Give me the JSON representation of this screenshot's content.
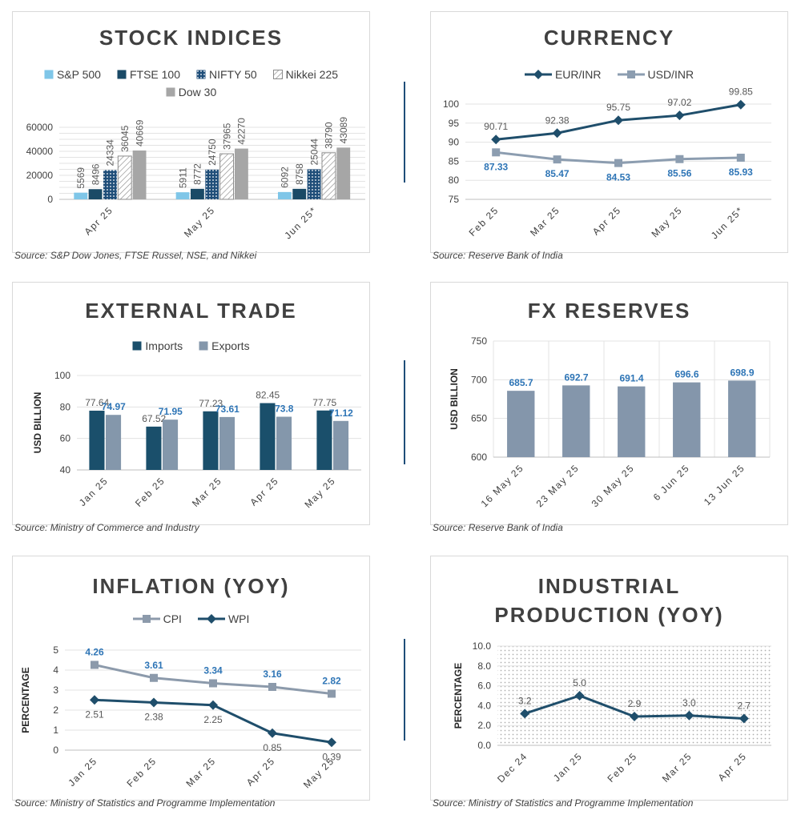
{
  "chart_data": [
    {
      "type": "bar",
      "title": "STOCK INDICES",
      "source": "Source: S&P Dow Jones, FTSE Russel, NSE, and Nikkei",
      "categories": [
        "Apr 25",
        "May 25",
        "Jun 25*"
      ],
      "ylim": [
        0,
        60000
      ],
      "yticks": [
        0,
        20000,
        40000,
        60000
      ],
      "grid_step": 5000,
      "ylabel": "",
      "legend": "top",
      "label_rotate": true,
      "series": [
        {
          "name": "S&P 500",
          "values": [
            5569,
            5911,
            6092
          ],
          "color": "#7fc6e8",
          "pattern": "solid",
          "label_color": "#595959"
        },
        {
          "name": "FTSE 100",
          "values": [
            8496,
            8772,
            8758
          ],
          "color": "#1a4a66",
          "pattern": "solid",
          "label_color": "#595959"
        },
        {
          "name": "NIFTY 50",
          "values": [
            24334,
            24750,
            25044
          ],
          "color": "#1f4e79",
          "pattern": "dots",
          "label_color": "#595959"
        },
        {
          "name": "Nikkei 225",
          "values": [
            36045,
            37965,
            38790
          ],
          "color": "#8c8c8c",
          "pattern": "hatch",
          "label_color": "#595959"
        },
        {
          "name": "Dow 30",
          "values": [
            40669,
            42270,
            43089
          ],
          "color": "#a6a6a6",
          "pattern": "solid",
          "label_color": "#595959"
        }
      ]
    },
    {
      "type": "line",
      "title": "CURRENCY",
      "source": "Source: Reserve Bank of India",
      "categories": [
        "Feb 25",
        "Mar 25",
        "Apr 25",
        "May 25",
        "Jun 25*"
      ],
      "ylim": [
        75,
        100
      ],
      "yticks": [
        75,
        80,
        85,
        90,
        95,
        100
      ],
      "grid_step": 5,
      "ylabel": "",
      "legend": "top",
      "series": [
        {
          "name": "EUR/INR",
          "values": [
            90.71,
            92.38,
            95.75,
            97.02,
            99.85
          ],
          "color": "#1f4e6b",
          "marker": "diamond",
          "label_pos": "above",
          "label_color": "#595959",
          "labels": [
            "90.71",
            "92.38",
            "95.75",
            "97.02",
            "99.85"
          ]
        },
        {
          "name": "USD/INR",
          "values": [
            87.33,
            85.47,
            84.53,
            85.56,
            85.93
          ],
          "color": "#8c9db0",
          "marker": "square",
          "label_pos": "below",
          "label_color": "#2e75b6",
          "labels": [
            "87.33",
            "85.47",
            "84.53",
            "85.56",
            "85.93"
          ]
        }
      ]
    },
    {
      "type": "bar",
      "title": "EXTERNAL TRADE",
      "source": "Source: Ministry of Commerce and Industry",
      "categories": [
        "Jan 25",
        "Feb 25",
        "Mar 25",
        "Apr 25",
        "May 25"
      ],
      "ylim": [
        40,
        100
      ],
      "yticks": [
        40,
        60,
        80,
        100
      ],
      "grid_step": 20,
      "ylabel": "USD BILLION",
      "legend": "top",
      "series": [
        {
          "name": "Imports",
          "values": [
            77.64,
            67.52,
            77.23,
            82.45,
            77.75
          ],
          "color": "#1a4f6b",
          "pattern": "solid",
          "label_color": "#595959",
          "labels": [
            "77.64",
            "67.52",
            "77.23",
            "82.45",
            "77.75"
          ]
        },
        {
          "name": "Exports",
          "values": [
            74.97,
            71.95,
            73.61,
            73.8,
            71.12
          ],
          "color": "#8497ab",
          "pattern": "solid",
          "label_color": "#2e75b6",
          "labels": [
            "74.97",
            "71.95",
            "73.61",
            "73.8",
            "71.12"
          ]
        }
      ]
    },
    {
      "type": "bar",
      "title": "FX RESERVES",
      "source": "Source: Reserve Bank of India",
      "categories": [
        "16 May 25",
        "23 May 25",
        "30 May 25",
        "6 Jun 25",
        "13 Jun 25"
      ],
      "ylim": [
        600,
        750
      ],
      "yticks": [
        600,
        650,
        700,
        750
      ],
      "grid_step": 50,
      "ylabel": "USD BILLION",
      "legend": "none",
      "vgrid": true,
      "series": [
        {
          "values": [
            685.7,
            692.7,
            691.4,
            696.6,
            698.9
          ],
          "color": "#8496ab",
          "pattern": "solid",
          "label_color": "#2e75b6",
          "labels": [
            "685.7",
            "692.7",
            "691.4",
            "696.6",
            "698.9"
          ]
        }
      ]
    },
    {
      "type": "line",
      "title": "INFLATION (YOY)",
      "source": "Source: Ministry of Statistics and Programme Implementation",
      "categories": [
        "Jan 25",
        "Feb 25",
        "Mar 25",
        "Apr 25",
        "May 25"
      ],
      "ylim": [
        0,
        5
      ],
      "yticks": [
        0,
        1,
        2,
        3,
        4,
        5
      ],
      "grid_step": 1,
      "ylabel": "PERCENTAGE",
      "legend": "top",
      "series": [
        {
          "name": "CPI",
          "values": [
            4.26,
            3.61,
            3.34,
            3.16,
            2.82
          ],
          "color": "#8c9aab",
          "marker": "square",
          "label_pos": "above",
          "label_color": "#2e75b6",
          "labels": [
            "4.26",
            "3.61",
            "3.34",
            "3.16",
            "2.82"
          ]
        },
        {
          "name": "WPI",
          "values": [
            2.51,
            2.38,
            2.25,
            0.85,
            0.39
          ],
          "color": "#1f4e6b",
          "marker": "diamond",
          "label_pos": "below",
          "label_color": "#595959",
          "labels": [
            "2.51",
            "2.38",
            "2.25",
            "0.85",
            "0.39"
          ]
        }
      ]
    },
    {
      "type": "line",
      "title": "INDUSTRIAL PRODUCTION (YOY)",
      "title_lines": [
        "INDUSTRIAL",
        "PRODUCTION (YOY)"
      ],
      "source": "Source: Ministry of Statistics and Programme Implementation",
      "categories": [
        "Dec 24",
        "Jan 25",
        "Feb 25",
        "Mar 25",
        "Apr 25"
      ],
      "ylim": [
        0,
        10
      ],
      "yticks": [
        "0.0",
        "2.0",
        "4.0",
        "6.0",
        "8.0",
        "10.0"
      ],
      "grid_step": 2,
      "ylabel": "PERCENTAGE",
      "legend": "none",
      "background": "dotted",
      "series": [
        {
          "values": [
            3.2,
            5.0,
            2.9,
            3.0,
            2.7
          ],
          "color": "#1f4e6b",
          "marker": "diamond",
          "label_pos": "above",
          "label_color": "#595959",
          "labels": [
            "3.2",
            "5.0",
            "2.9",
            "3.0",
            "2.7"
          ]
        }
      ]
    }
  ]
}
